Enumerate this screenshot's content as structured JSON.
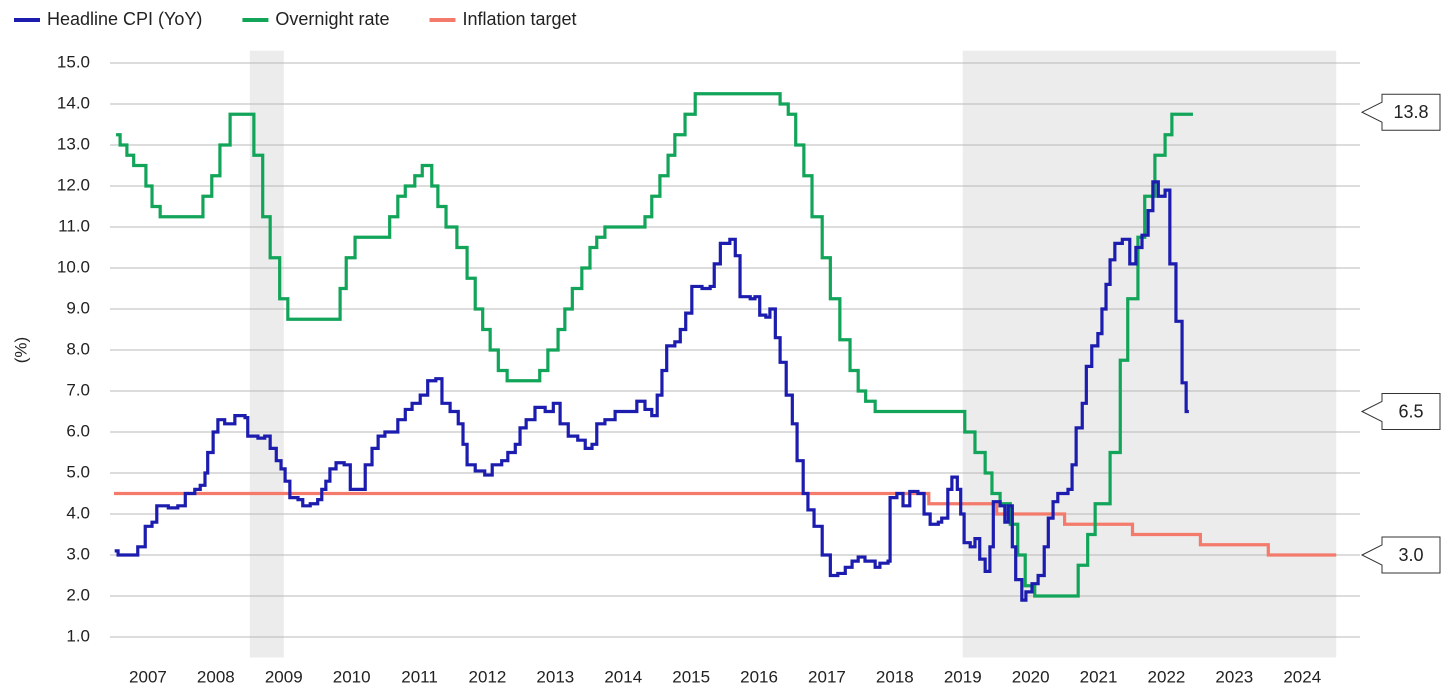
{
  "chart_data": {
    "type": "line",
    "interpolation": "step-after",
    "y_label": "(%)",
    "xlim": [
      2007,
      2025
    ],
    "xticks": [
      {
        "value": 2007.5,
        "label": "2007"
      },
      {
        "value": 2008.5,
        "label": "2008"
      },
      {
        "value": 2009.5,
        "label": "2009"
      },
      {
        "value": 2010.5,
        "label": "2010"
      },
      {
        "value": 2011.5,
        "label": "2011"
      },
      {
        "value": 2012.5,
        "label": "2012"
      },
      {
        "value": 2013.5,
        "label": "2013"
      },
      {
        "value": 2014.5,
        "label": "2014"
      },
      {
        "value": 2015.5,
        "label": "2015"
      },
      {
        "value": 2016.5,
        "label": "2016"
      },
      {
        "value": 2017.5,
        "label": "2017"
      },
      {
        "value": 2018.5,
        "label": "2018"
      },
      {
        "value": 2019.5,
        "label": "2019"
      },
      {
        "value": 2020.5,
        "label": "2020"
      },
      {
        "value": 2021.5,
        "label": "2021"
      },
      {
        "value": 2022.5,
        "label": "2022"
      },
      {
        "value": 2023.5,
        "label": "2023"
      },
      {
        "value": 2024.5,
        "label": "2024"
      }
    ],
    "ylim": [
      0.5,
      15.3
    ],
    "yticks": [
      {
        "value": 1,
        "label": "1.0"
      },
      {
        "value": 2,
        "label": "2.0"
      },
      {
        "value": 3,
        "label": "3.0"
      },
      {
        "value": 4,
        "label": "4.0"
      },
      {
        "value": 5,
        "label": "5.0"
      },
      {
        "value": 6,
        "label": "6.0"
      },
      {
        "value": 7,
        "label": "7.0"
      },
      {
        "value": 8,
        "label": "8.0"
      },
      {
        "value": 9,
        "label": "9.0"
      },
      {
        "value": 10,
        "label": "10.0"
      },
      {
        "value": 11,
        "label": "11.0"
      },
      {
        "value": 12,
        "label": "12.0"
      },
      {
        "value": 13,
        "label": "13.0"
      },
      {
        "value": 14,
        "label": "14.0"
      },
      {
        "value": 15,
        "label": "15.0"
      }
    ],
    "grid": true,
    "legend": "top-left",
    "shaded_ranges": [
      [
        2009.0,
        2009.5
      ],
      [
        2019.5,
        2025
      ]
    ],
    "end_labels": [
      {
        "value": 13.8,
        "label": "13.8"
      },
      {
        "value": 6.5,
        "label": "6.5"
      },
      {
        "value": 3.0,
        "label": "3.0"
      }
    ],
    "series": [
      {
        "name": "Headline CPI (YoY)",
        "color": "#1c1cae",
        "x": [
          2007.01,
          2007.06,
          2007.21,
          2007.35,
          2007.46,
          2007.56,
          2007.63,
          2007.8,
          2007.94,
          2008.05,
          2008.19,
          2008.27,
          2008.34,
          2008.38,
          2008.46,
          2008.53,
          2008.63,
          2008.78,
          2008.93,
          2008.97,
          2009.12,
          2009.22,
          2009.3,
          2009.39,
          2009.46,
          2009.52,
          2009.59,
          2009.71,
          2009.78,
          2009.89,
          2010.0,
          2010.06,
          2010.12,
          2010.18,
          2010.27,
          2010.39,
          2010.48,
          2010.59,
          2010.7,
          2010.8,
          2010.89,
          2010.99,
          2011.18,
          2011.29,
          2011.39,
          2011.51,
          2011.62,
          2011.74,
          2011.83,
          2011.95,
          2012.07,
          2012.14,
          2012.2,
          2012.32,
          2012.46,
          2012.57,
          2012.71,
          2012.8,
          2012.91,
          2012.98,
          2013.07,
          2013.2,
          2013.35,
          2013.47,
          2013.57,
          2013.69,
          2013.83,
          2013.94,
          2014.04,
          2014.11,
          2014.23,
          2014.38,
          2014.6,
          2014.7,
          2014.82,
          2014.92,
          2015.0,
          2015.07,
          2015.14,
          2015.26,
          2015.34,
          2015.42,
          2015.51,
          2015.66,
          2015.78,
          2015.84,
          2015.93,
          2016.07,
          2016.15,
          2016.22,
          2016.37,
          2016.44,
          2016.51,
          2016.6,
          2016.66,
          2016.74,
          2016.81,
          2016.9,
          2016.99,
          2017.06,
          2017.15,
          2017.22,
          2017.31,
          2017.43,
          2017.55,
          2017.66,
          2017.77,
          2017.87,
          2017.96,
          2018.06,
          2018.21,
          2018.28,
          2018.4,
          2018.43,
          2018.53,
          2018.62,
          2018.72,
          2018.84,
          2018.93,
          2019.02,
          2019.14,
          2019.19,
          2019.28,
          2019.34,
          2019.42,
          2019.47,
          2019.52,
          2019.61,
          2019.68,
          2019.75,
          2019.83,
          2019.9,
          2019.95,
          2020.05,
          2020.12,
          2020.17,
          2020.23,
          2020.28,
          2020.37,
          2020.43,
          2020.52,
          2020.61,
          2020.7,
          2020.76,
          2020.83,
          2020.9,
          2021.05,
          2021.11,
          2021.17,
          2021.26,
          2021.32,
          2021.4,
          2021.49,
          2021.55,
          2021.61,
          2021.67,
          2021.74,
          2021.85,
          2021.96,
          2022.05,
          2022.14,
          2022.23,
          2022.3,
          2022.38,
          2022.48,
          2022.55,
          2022.64,
          2022.73,
          2022.79,
          2022.83
        ],
        "values": [
          3.1,
          3.0,
          3.0,
          3.2,
          3.7,
          3.8,
          4.2,
          4.15,
          4.2,
          4.5,
          4.6,
          4.7,
          5.0,
          5.5,
          6.0,
          6.3,
          6.2,
          6.4,
          6.35,
          5.9,
          5.85,
          5.9,
          5.6,
          5.3,
          5.1,
          4.8,
          4.4,
          4.35,
          4.2,
          4.25,
          4.35,
          4.6,
          4.8,
          5.1,
          5.25,
          5.2,
          4.6,
          4.6,
          5.2,
          5.6,
          5.9,
          6.0,
          6.3,
          6.55,
          6.7,
          6.9,
          7.25,
          7.3,
          6.7,
          6.5,
          6.2,
          5.7,
          5.2,
          5.05,
          4.95,
          5.2,
          5.3,
          5.5,
          5.7,
          6.1,
          6.3,
          6.6,
          6.5,
          6.7,
          6.2,
          5.9,
          5.8,
          5.6,
          5.7,
          6.2,
          6.3,
          6.5,
          6.5,
          6.75,
          6.55,
          6.4,
          6.9,
          7.5,
          8.1,
          8.2,
          8.5,
          8.9,
          9.55,
          9.5,
          9.55,
          10.1,
          10.6,
          10.7,
          10.3,
          9.3,
          9.25,
          9.3,
          8.85,
          8.8,
          9.0,
          8.3,
          7.7,
          6.9,
          6.2,
          5.3,
          4.5,
          4.1,
          3.7,
          3.0,
          2.5,
          2.55,
          2.7,
          2.85,
          2.95,
          2.85,
          2.7,
          2.8,
          2.85,
          4.4,
          4.5,
          4.2,
          4.55,
          4.5,
          4.0,
          3.75,
          3.8,
          3.9,
          4.6,
          4.9,
          4.6,
          4.0,
          3.3,
          3.2,
          3.4,
          2.9,
          2.6,
          3.2,
          4.3,
          4.2,
          3.8,
          4.2,
          3.2,
          2.4,
          1.9,
          2.1,
          2.3,
          2.5,
          3.2,
          3.9,
          4.3,
          4.5,
          4.6,
          5.2,
          6.1,
          6.7,
          7.6,
          8.1,
          8.4,
          9.0,
          9.6,
          10.2,
          10.6,
          10.7,
          10.1,
          10.5,
          10.8,
          11.4,
          12.1,
          11.75,
          11.9,
          10.1,
          8.7,
          7.2,
          6.5,
          6.5
        ]
      },
      {
        "name": "Overnight rate",
        "color": "#12a55a",
        "x": [
          2007.03,
          2007.09,
          2007.19,
          2007.29,
          2007.47,
          2007.56,
          2007.68,
          2008.31,
          2008.44,
          2008.56,
          2008.71,
          2009.06,
          2009.19,
          2009.3,
          2009.44,
          2009.56,
          2010.33,
          2010.42,
          2010.55,
          2011.06,
          2011.18,
          2011.29,
          2011.43,
          2011.54,
          2011.68,
          2011.77,
          2011.89,
          2012.05,
          2012.2,
          2012.32,
          2012.43,
          2012.54,
          2012.66,
          2012.79,
          2013.27,
          2013.39,
          2013.54,
          2013.64,
          2013.75,
          2013.89,
          2014.01,
          2014.11,
          2014.23,
          2014.82,
          2014.92,
          2015.04,
          2015.16,
          2015.26,
          2015.41,
          2015.56,
          2016.81,
          2016.93,
          2017.04,
          2017.16,
          2017.28,
          2017.43,
          2017.55,
          2017.69,
          2017.84,
          2017.96,
          2018.07,
          2018.21,
          2019.53,
          2019.68,
          2019.83,
          2019.93,
          2020.05,
          2020.2,
          2020.31,
          2020.42,
          2020.56,
          2021.2,
          2021.34,
          2021.45,
          2021.67,
          2021.82,
          2021.93,
          2022.08,
          2022.18,
          2022.33,
          2022.48,
          2022.58,
          2022.89
        ],
        "values": [
          13.25,
          13,
          12.75,
          12.5,
          12,
          11.5,
          11.25,
          11.75,
          12.25,
          13,
          13.75,
          12.75,
          11.25,
          10.25,
          9.25,
          8.75,
          9.5,
          10.25,
          10.75,
          11.25,
          11.75,
          12,
          12.25,
          12.5,
          12,
          11.5,
          11,
          10.5,
          9.75,
          9,
          8.5,
          8,
          7.5,
          7.25,
          7.5,
          8,
          8.5,
          9,
          9.5,
          10,
          10.5,
          10.75,
          11,
          11.25,
          11.75,
          12.25,
          12.75,
          13.25,
          13.75,
          14.25,
          14,
          13.75,
          13,
          12.25,
          11.25,
          10.25,
          9.25,
          8.25,
          7.5,
          7,
          6.75,
          6.5,
          6,
          5.5,
          5,
          4.5,
          4.25,
          3.75,
          3,
          2.25,
          2,
          2.75,
          3.5,
          4.25,
          5.5,
          7.75,
          9.25,
          10.75,
          11.75,
          12.75,
          13.25,
          13.75,
          13.75
        ]
      },
      {
        "name": "Inflation target",
        "color": "#f47b6b",
        "x": [
          2007.0,
          2019.0,
          2020.0,
          2021.0,
          2022.0,
          2023.0,
          2024.0,
          2025.0
        ],
        "values": [
          4.5,
          4.25,
          4.0,
          3.75,
          3.5,
          3.25,
          3.0,
          3.0
        ]
      }
    ]
  }
}
